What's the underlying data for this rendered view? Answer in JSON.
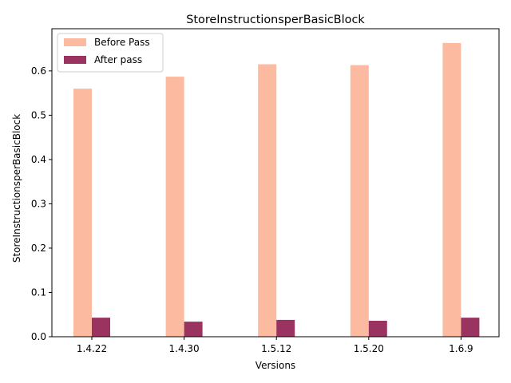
{
  "chart_data": {
    "type": "bar",
    "title": "StoreInstructionsperBasicBlock",
    "xlabel": "Versions",
    "ylabel": "StoreInstructionsperBasicBlock",
    "categories": [
      "1.4.22",
      "1.4.30",
      "1.5.12",
      "1.5.20",
      "1.6.9"
    ],
    "series": [
      {
        "name": "Before Pass",
        "color": "#fcbba1",
        "values": [
          0.56,
          0.587,
          0.615,
          0.613,
          0.663
        ]
      },
      {
        "name": "After pass",
        "color": "#9b3360",
        "values": [
          0.043,
          0.034,
          0.038,
          0.036,
          0.043
        ]
      }
    ],
    "ylim": [
      0,
      0.6952
    ],
    "yticks": [
      "0.0",
      "0.1",
      "0.2",
      "0.3",
      "0.4",
      "0.5",
      "0.6"
    ],
    "legend_position": "top-left",
    "grid": false
  }
}
